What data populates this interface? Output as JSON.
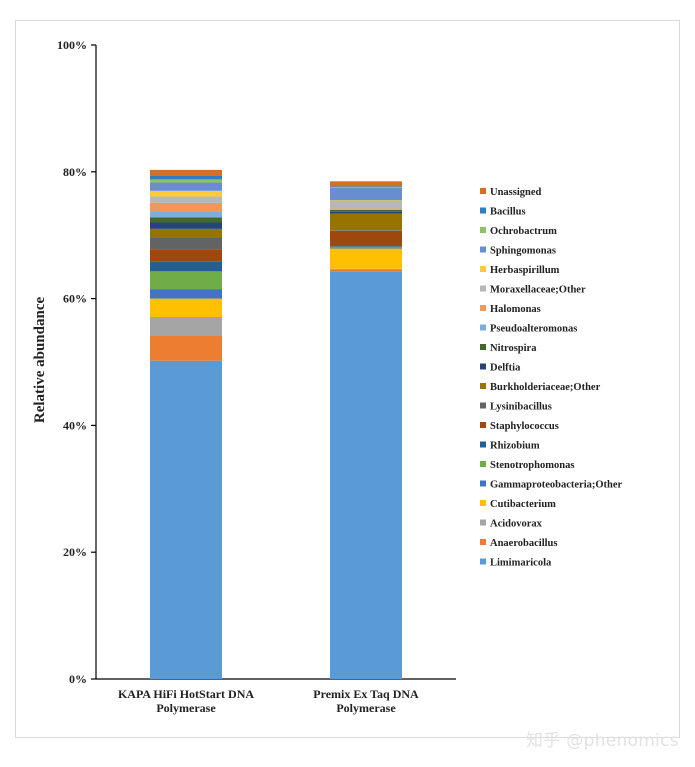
{
  "chart_data": {
    "type": "stacked-bar",
    "title": "",
    "ylabel": "Relative abundance",
    "xlabel": "",
    "ylim": [
      0,
      100
    ],
    "y_ticks": [
      "0%",
      "20%",
      "40%",
      "60%",
      "80%",
      "100%"
    ],
    "categories": [
      [
        "KAPA HiFi HotStart DNA",
        "Polymerase"
      ],
      [
        "Premix Ex Taq DNA",
        "Polymerase"
      ]
    ],
    "series": [
      {
        "name": "Limimaricola",
        "color": "#5b9bd5",
        "values": [
          50.2,
          64.3
        ]
      },
      {
        "name": "Anaerobacillus",
        "color": "#ed7d31",
        "values": [
          3.9,
          0.3
        ]
      },
      {
        "name": "Acidovorax",
        "color": "#a5a5a5",
        "values": [
          3.0,
          0.1
        ]
      },
      {
        "name": "Cutibacterium",
        "color": "#ffc000",
        "values": [
          2.9,
          3.2
        ]
      },
      {
        "name": "Gammaproteobacteria;Other",
        "color": "#4472c4",
        "values": [
          1.5,
          0.2
        ]
      },
      {
        "name": "Stenotrophomonas",
        "color": "#70ad47",
        "values": [
          2.8,
          0.1
        ]
      },
      {
        "name": "Rhizobium",
        "color": "#255e91",
        "values": [
          1.5,
          0.1
        ]
      },
      {
        "name": "Staphylococcus",
        "color": "#9e480e",
        "values": [
          2.0,
          2.4
        ]
      },
      {
        "name": "Lysinibacillus",
        "color": "#636363",
        "values": [
          1.9,
          0.1
        ]
      },
      {
        "name": "Burkholderiaceae;Other",
        "color": "#997300",
        "values": [
          1.3,
          2.6
        ]
      },
      {
        "name": "Delftia",
        "color": "#264478",
        "values": [
          1.0,
          0.3
        ]
      },
      {
        "name": "Nitrospira",
        "color": "#43682b",
        "values": [
          0.8,
          0.3
        ]
      },
      {
        "name": "Pseudoalteromonas",
        "color": "#7cafdd",
        "values": [
          1.0,
          0.1
        ]
      },
      {
        "name": "Halomonas",
        "color": "#f1975a",
        "values": [
          1.3,
          0.1
        ]
      },
      {
        "name": "Moraxellaceae;Other",
        "color": "#b7b7b7",
        "values": [
          1.0,
          1.2
        ]
      },
      {
        "name": "Herbaspirillum",
        "color": "#ffcd33",
        "values": [
          0.9,
          0.1
        ]
      },
      {
        "name": "Sphingomonas",
        "color": "#698ed0",
        "values": [
          1.3,
          2.0
        ]
      },
      {
        "name": "Ochrobactrum",
        "color": "#8cc168",
        "values": [
          0.5,
          0.1
        ]
      },
      {
        "name": "Bacillus",
        "color": "#327dc2",
        "values": [
          0.6,
          0.1
        ]
      },
      {
        "name": "Unassigned",
        "color": "#d26f2a",
        "values": [
          0.9,
          0.8
        ]
      }
    ],
    "legend_position": "right"
  },
  "watermark": "知乎 @phenomics"
}
